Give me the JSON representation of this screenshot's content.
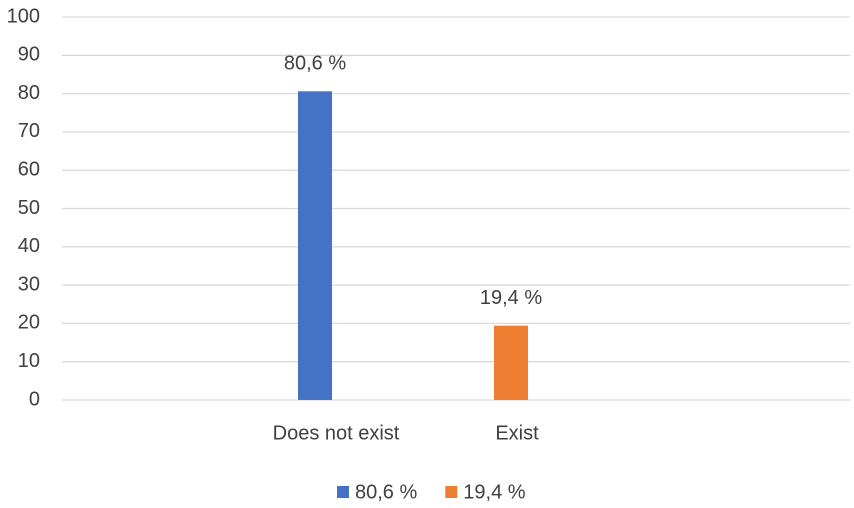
{
  "chart_data": {
    "type": "bar",
    "categories": [
      "Does not exist",
      "Exist"
    ],
    "series": [
      {
        "name": "80,6 %",
        "color": "#4472c4",
        "values": [
          80.6,
          null
        ],
        "value_labels": [
          "80,6 %",
          null
        ]
      },
      {
        "name": "19,4 %",
        "color": "#ed7d31",
        "values": [
          null,
          19.4
        ],
        "value_labels": [
          null,
          "19,4 %"
        ]
      }
    ],
    "ylim": [
      0,
      100
    ],
    "yticks": [
      0,
      10,
      20,
      30,
      40,
      50,
      60,
      70,
      80,
      90,
      100
    ],
    "grid": true,
    "legend": "bottom"
  }
}
